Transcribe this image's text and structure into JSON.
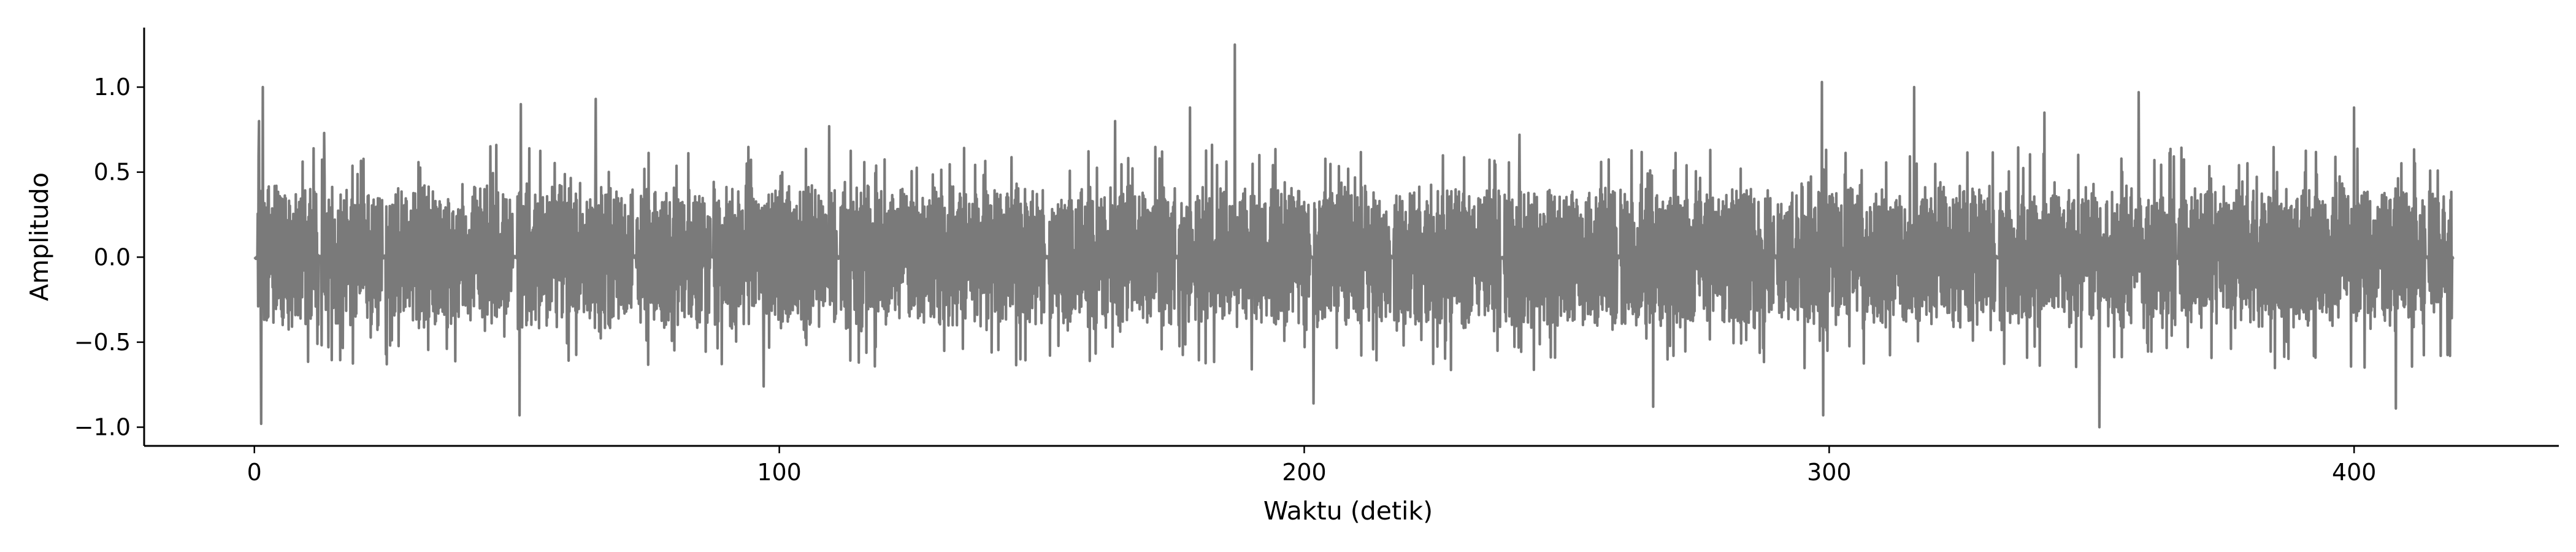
{
  "chart_data": {
    "type": "line",
    "title": "",
    "xlabel": "Waktu (detik)",
    "ylabel": "Amplitudo",
    "xlim": [
      -21,
      439
    ],
    "ylim": [
      -1.11,
      1.35
    ],
    "xticks": [
      0,
      100,
      200,
      300,
      400
    ],
    "yticks": [
      -1.0,
      -0.5,
      0.0,
      0.5,
      1.0
    ],
    "xtick_labels": [
      "0",
      "100",
      "200",
      "300",
      "400"
    ],
    "ytick_labels": [
      "−1.0",
      "−0.5",
      "0.0",
      "0.5",
      "1.0"
    ],
    "grid": false,
    "legend": "none",
    "line_color": "#7a7a7a",
    "series": [
      {
        "name": "",
        "x_start": 0,
        "x_end": 419,
        "typical_envelope": 0.38,
        "silent_gaps": [
          [
            0.0,
            0.6
          ],
          [
            12.2,
            12.8
          ],
          [
            24.4,
            25.0
          ],
          [
            49.3,
            50.1
          ],
          [
            72.1,
            72.7
          ],
          [
            86.9,
            87.5
          ],
          [
            111.0,
            111.6
          ],
          [
            150.6,
            151.4
          ],
          [
            175.4,
            176.0
          ],
          [
            201.2,
            201.8
          ],
          [
            216.4,
            217.0
          ],
          [
            237.3,
            238.1
          ],
          [
            259.6,
            260.2
          ],
          [
            289.5,
            290.1
          ],
          [
            331.6,
            332.4
          ],
          [
            366.0,
            366.6
          ],
          [
            413.6,
            414.2
          ],
          [
            418.6,
            419.0
          ]
        ],
        "peaks": [
          {
            "x": 0.9,
            "y": 0.8
          },
          {
            "x": 1.3,
            "y": -0.98
          },
          {
            "x": 1.6,
            "y": 1.0
          },
          {
            "x": 13.3,
            "y": 0.73
          },
          {
            "x": 25.2,
            "y": -0.63
          },
          {
            "x": 50.5,
            "y": -0.93
          },
          {
            "x": 50.8,
            "y": 0.9
          },
          {
            "x": 65.0,
            "y": 0.93
          },
          {
            "x": 97.0,
            "y": -0.76
          },
          {
            "x": 109.5,
            "y": 0.77
          },
          {
            "x": 164.0,
            "y": 0.8
          },
          {
            "x": 178.2,
            "y": 0.88
          },
          {
            "x": 186.8,
            "y": 1.25
          },
          {
            "x": 190.0,
            "y": -0.66
          },
          {
            "x": 201.8,
            "y": -0.86
          },
          {
            "x": 241.0,
            "y": 0.72
          },
          {
            "x": 266.5,
            "y": -0.88
          },
          {
            "x": 298.6,
            "y": 1.03
          },
          {
            "x": 298.9,
            "y": -0.93
          },
          {
            "x": 316.2,
            "y": 1.0
          },
          {
            "x": 341.0,
            "y": 0.85
          },
          {
            "x": 351.5,
            "y": -1.0
          },
          {
            "x": 359.0,
            "y": 0.97
          },
          {
            "x": 400.0,
            "y": 0.88
          },
          {
            "x": 408.0,
            "y": -0.89
          },
          {
            "x": 416.5,
            "y": -0.58
          }
        ]
      }
    ]
  }
}
